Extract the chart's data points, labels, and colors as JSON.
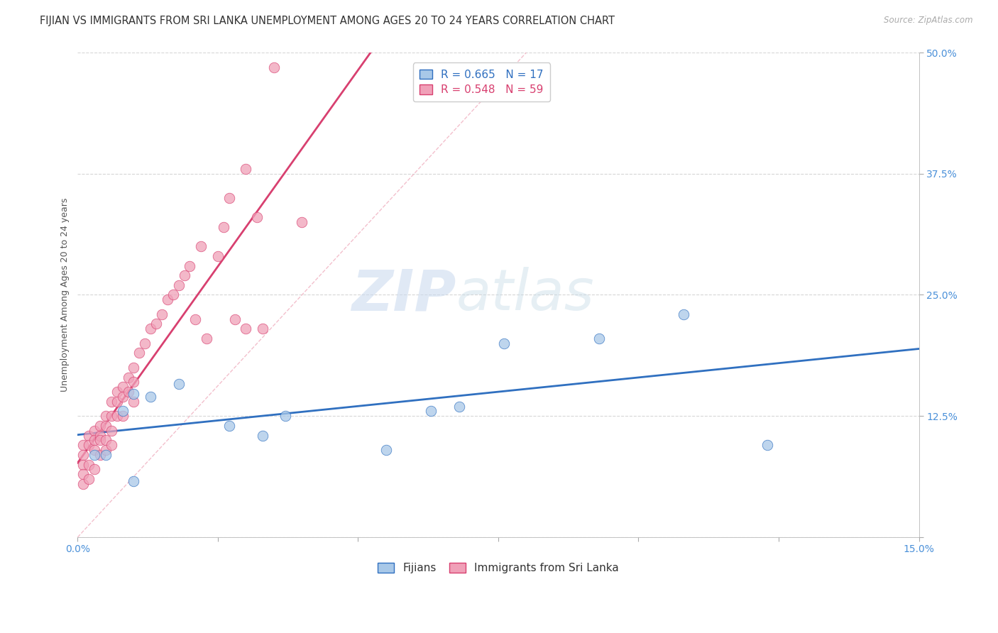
{
  "title": "FIJIAN VS IMMIGRANTS FROM SRI LANKA UNEMPLOYMENT AMONG AGES 20 TO 24 YEARS CORRELATION CHART",
  "source": "Source: ZipAtlas.com",
  "ylabel": "Unemployment Among Ages 20 to 24 years",
  "xlim": [
    0.0,
    0.15
  ],
  "ylim": [
    0.0,
    0.5
  ],
  "xticks": [
    0.0,
    0.025,
    0.05,
    0.075,
    0.1,
    0.125,
    0.15
  ],
  "xticklabels": [
    "0.0%",
    "",
    "",
    "",
    "",
    "",
    "15.0%"
  ],
  "yticks": [
    0.0,
    0.125,
    0.25,
    0.375,
    0.5
  ],
  "yticklabels": [
    "",
    "12.5%",
    "25.0%",
    "37.5%",
    "50.0%"
  ],
  "fijians_color": "#a8c8e8",
  "srilanka_color": "#f0a0b8",
  "fijians_line_color": "#3070c0",
  "srilanka_line_color": "#d84070",
  "legend_label1": "Fijians",
  "legend_label2": "Immigrants from Sri Lanka",
  "watermark_zip": "ZIP",
  "watermark_atlas": "atlas",
  "fijians_x": [
    0.003,
    0.005,
    0.008,
    0.01,
    0.01,
    0.013,
    0.018,
    0.027,
    0.033,
    0.037,
    0.055,
    0.063,
    0.068,
    0.076,
    0.093,
    0.108,
    0.123
  ],
  "fijians_y": [
    0.085,
    0.085,
    0.13,
    0.148,
    0.058,
    0.145,
    0.158,
    0.115,
    0.105,
    0.125,
    0.09,
    0.13,
    0.135,
    0.2,
    0.205,
    0.23,
    0.095
  ],
  "srilanka_x": [
    0.001,
    0.001,
    0.001,
    0.001,
    0.001,
    0.002,
    0.002,
    0.002,
    0.002,
    0.003,
    0.003,
    0.003,
    0.003,
    0.004,
    0.004,
    0.004,
    0.004,
    0.005,
    0.005,
    0.005,
    0.005,
    0.006,
    0.006,
    0.006,
    0.006,
    0.007,
    0.007,
    0.007,
    0.008,
    0.008,
    0.008,
    0.009,
    0.009,
    0.01,
    0.01,
    0.01,
    0.011,
    0.012,
    0.013,
    0.014,
    0.015,
    0.016,
    0.017,
    0.018,
    0.019,
    0.02,
    0.021,
    0.022,
    0.023,
    0.025,
    0.026,
    0.027,
    0.028,
    0.03,
    0.03,
    0.032,
    0.033,
    0.035,
    0.04
  ],
  "srilanka_y": [
    0.095,
    0.085,
    0.075,
    0.065,
    0.055,
    0.105,
    0.095,
    0.075,
    0.06,
    0.11,
    0.1,
    0.09,
    0.07,
    0.115,
    0.105,
    0.1,
    0.085,
    0.125,
    0.115,
    0.1,
    0.09,
    0.14,
    0.125,
    0.11,
    0.095,
    0.15,
    0.14,
    0.125,
    0.155,
    0.145,
    0.125,
    0.165,
    0.15,
    0.175,
    0.16,
    0.14,
    0.19,
    0.2,
    0.215,
    0.22,
    0.23,
    0.245,
    0.25,
    0.26,
    0.27,
    0.28,
    0.225,
    0.3,
    0.205,
    0.29,
    0.32,
    0.35,
    0.225,
    0.38,
    0.215,
    0.33,
    0.215,
    0.485,
    0.325
  ],
  "title_fontsize": 10.5,
  "axis_label_fontsize": 9,
  "tick_fontsize": 10,
  "background_color": "#ffffff",
  "grid_color": "#cccccc",
  "ref_line_color": "#f0b0c0"
}
